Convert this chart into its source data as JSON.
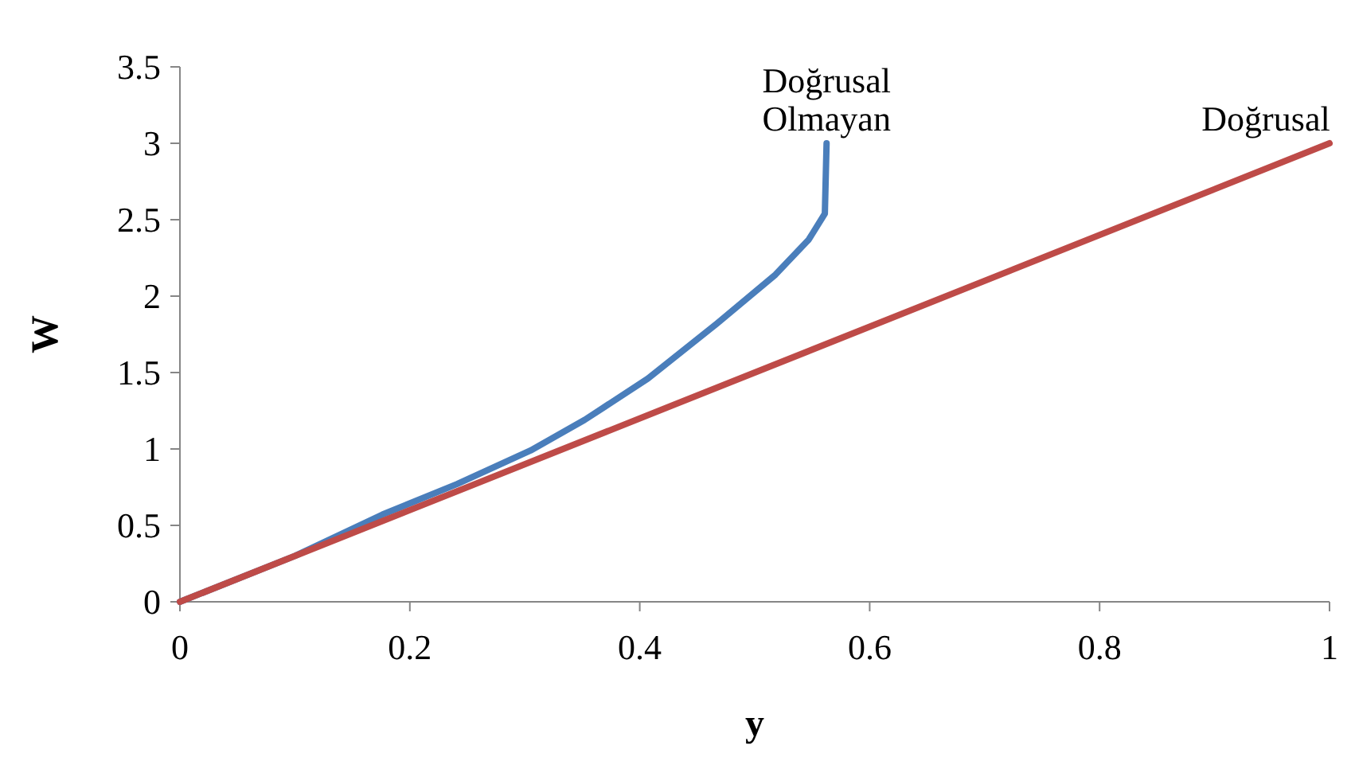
{
  "chart_data": {
    "type": "line",
    "xlabel": "y",
    "ylabel": "W",
    "xlim": [
      0,
      1
    ],
    "ylim": [
      0,
      3.5
    ],
    "xticks": [
      0,
      0.2,
      0.4,
      0.6,
      0.8,
      1
    ],
    "yticks": [
      0,
      0.5,
      1,
      1.5,
      2,
      2.5,
      3,
      3.5
    ],
    "grid": false,
    "legend": false,
    "marker": "none",
    "line_style": "solid",
    "series": [
      {
        "name": "Doğrusal Olmayan",
        "color": "#4a7ebb",
        "x": [
          0,
          0.1,
          0.176,
          0.241,
          0.305,
          0.352,
          0.407,
          0.467,
          0.518,
          0.547,
          0.561,
          0.5625
        ],
        "values": [
          0,
          0.3,
          0.57,
          0.77,
          0.99,
          1.19,
          1.46,
          1.82,
          2.14,
          2.37,
          2.54,
          3
        ]
      },
      {
        "name": "Doğrusal",
        "color": "#be4b48",
        "x": [
          0,
          1
        ],
        "values": [
          0,
          3
        ]
      }
    ]
  }
}
